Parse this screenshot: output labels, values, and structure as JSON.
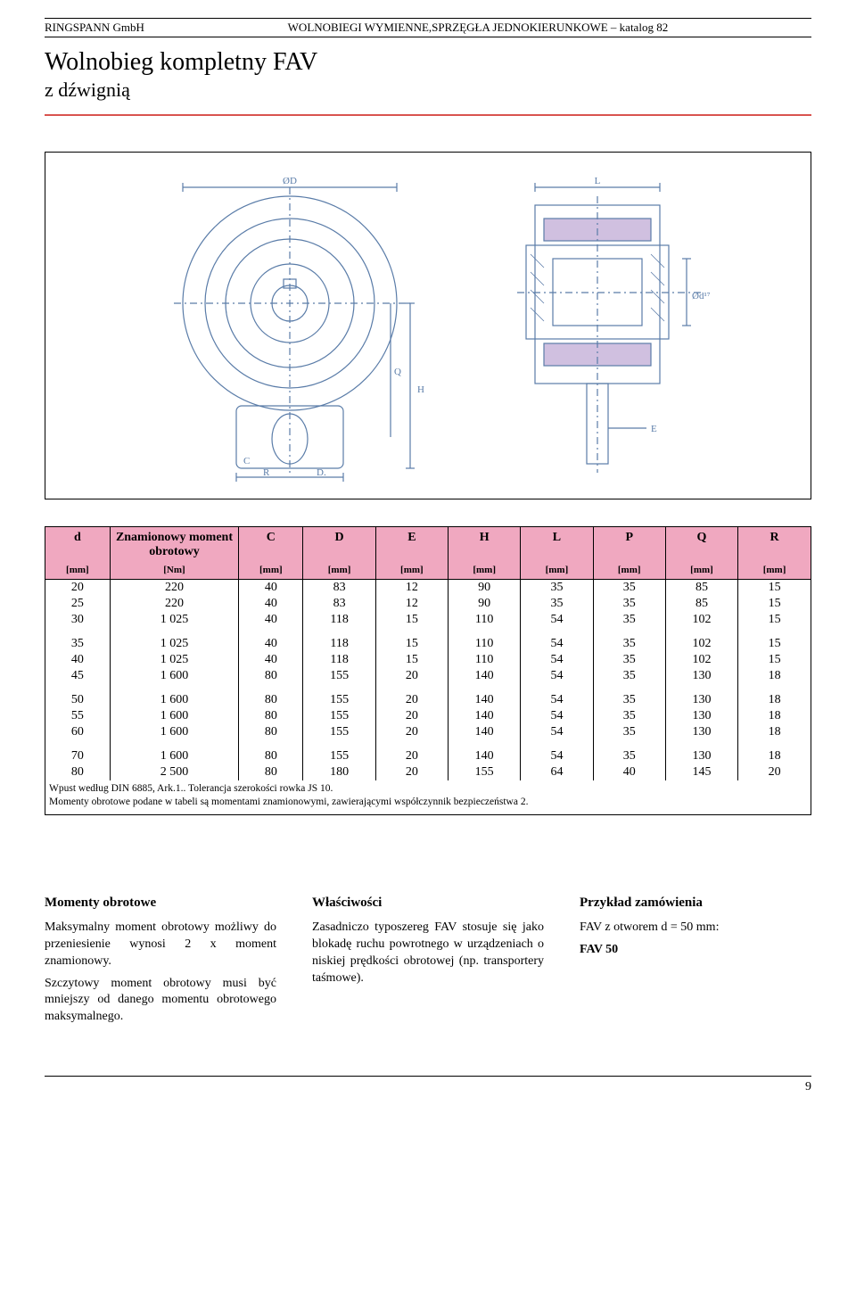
{
  "header": {
    "left": "RINGSPANN GmbH",
    "center": "WOLNOBIEGI WYMIENNE,SPRZĘGŁA JEDNOKIERUNKOWE – katalog 82"
  },
  "title": "Wolnobieg kompletny FAV",
  "subtitle": "z  dźwignią",
  "diagram": {
    "front": {
      "outer_color": "#5a7ca8",
      "dim_color": "#5a7ca8",
      "labels": [
        "ØD",
        "H",
        "Q",
        "C",
        "R",
        "D."
      ]
    },
    "side": {
      "outer_color": "#5a7ca8",
      "fill_violet": "#d0c0e0",
      "labels": [
        "L",
        "Ød¹⁷",
        "E"
      ]
    }
  },
  "table": {
    "header_bg": "#f0a8c0",
    "columns": [
      {
        "label": "d",
        "unit": "[mm]"
      },
      {
        "label": "Znamionowy moment obrotowy",
        "unit": "[Nm]"
      },
      {
        "label": "C",
        "unit": "[mm]"
      },
      {
        "label": "D",
        "unit": "[mm]"
      },
      {
        "label": "E",
        "unit": "[mm]"
      },
      {
        "label": "H",
        "unit": "[mm]"
      },
      {
        "label": "L",
        "unit": "[mm]"
      },
      {
        "label": "P",
        "unit": "[mm]"
      },
      {
        "label": "Q",
        "unit": "[mm]"
      },
      {
        "label": "R",
        "unit": "[mm]"
      }
    ],
    "col_widths": [
      "8%",
      "16%",
      "8%",
      "9%",
      "9%",
      "9%",
      "9%",
      "9%",
      "9%",
      "9%"
    ],
    "groups": [
      [
        [
          "20",
          "220",
          "40",
          "83",
          "12",
          "90",
          "35",
          "35",
          "85",
          "15"
        ],
        [
          "25",
          "220",
          "40",
          "83",
          "12",
          "90",
          "35",
          "35",
          "85",
          "15"
        ],
        [
          "30",
          "1 025",
          "40",
          "118",
          "15",
          "110",
          "54",
          "35",
          "102",
          "15"
        ]
      ],
      [
        [
          "35",
          "1 025",
          "40",
          "118",
          "15",
          "110",
          "54",
          "35",
          "102",
          "15"
        ],
        [
          "40",
          "1 025",
          "40",
          "118",
          "15",
          "110",
          "54",
          "35",
          "102",
          "15"
        ],
        [
          "45",
          "1 600",
          "80",
          "155",
          "20",
          "140",
          "54",
          "35",
          "130",
          "18"
        ]
      ],
      [
        [
          "50",
          "1 600",
          "80",
          "155",
          "20",
          "140",
          "54",
          "35",
          "130",
          "18"
        ],
        [
          "55",
          "1 600",
          "80",
          "155",
          "20",
          "140",
          "54",
          "35",
          "130",
          "18"
        ],
        [
          "60",
          "1 600",
          "80",
          "155",
          "20",
          "140",
          "54",
          "35",
          "130",
          "18"
        ]
      ],
      [
        [
          "70",
          "1 600",
          "80",
          "155",
          "20",
          "140",
          "54",
          "35",
          "130",
          "18"
        ],
        [
          "80",
          "2 500",
          "80",
          "180",
          "20",
          "155",
          "64",
          "40",
          "145",
          "20"
        ]
      ]
    ],
    "notes": [
      "Wpust według DIN 6885, Ark.1.. Tolerancja szerokości rowka JS 10.",
      "Momenty obrotowe podane w tabeli są momentami znamionowymi, zawierającymi współczynnik bezpieczeństwa 2."
    ]
  },
  "columns_section": {
    "left": {
      "heading": "Momenty obrotowe",
      "p1": "Maksymalny moment obrotowy możliwy do przeniesienie wynosi 2 x moment znamionowy.",
      "p2": "Szczytowy moment obrotowy musi być mniejszy od danego momentu obrotowego maksymalnego."
    },
    "mid": {
      "heading": "Właściwości",
      "p1": "Zasadniczo typoszereg FAV stosuje się jako blokadę ruchu powrotnego w urządzeniach o niskiej prędkości obrotowej (np. transportery taśmowe)."
    },
    "right": {
      "heading": "Przykład zamówienia",
      "p1": "FAV z otworem d = 50 mm:",
      "p2": "FAV 50"
    }
  },
  "page_number": "9"
}
